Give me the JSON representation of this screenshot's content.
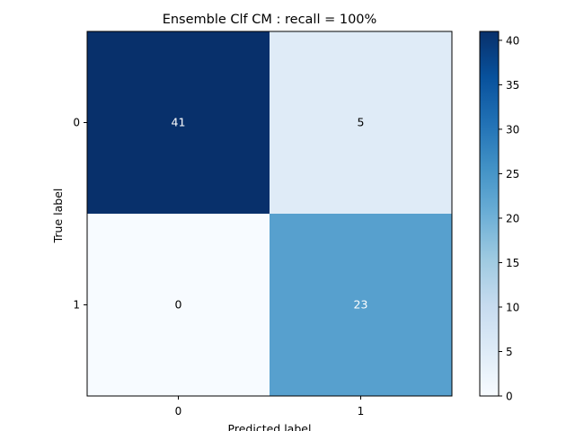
{
  "chart_data": {
    "type": "heatmap",
    "title": "Ensemble Clf CM : recall = 100%",
    "xlabel": "Predicted label",
    "ylabel": "True label",
    "x_categories": [
      "0",
      "1"
    ],
    "y_categories": [
      "0",
      "1"
    ],
    "matrix": [
      [
        41,
        5
      ],
      [
        0,
        23
      ]
    ],
    "colormap": "Blues",
    "colorbar": {
      "range": [
        0,
        41
      ],
      "ticks": [
        0,
        5,
        10,
        15,
        20,
        25,
        30,
        35,
        40
      ],
      "tick_labels": [
        "0",
        "5",
        "10",
        "15",
        "20",
        "25",
        "30",
        "35",
        "40"
      ]
    },
    "grid": false,
    "legend": "colorbar-right"
  },
  "colors": {
    "blues": [
      "#f7fbff",
      "#deebf7",
      "#c6dbef",
      "#9ecae1",
      "#6baed6",
      "#4292c6",
      "#2171b5",
      "#08519c",
      "#08306b"
    ],
    "dark_text": "#000000",
    "light_text": "#ffffff"
  }
}
